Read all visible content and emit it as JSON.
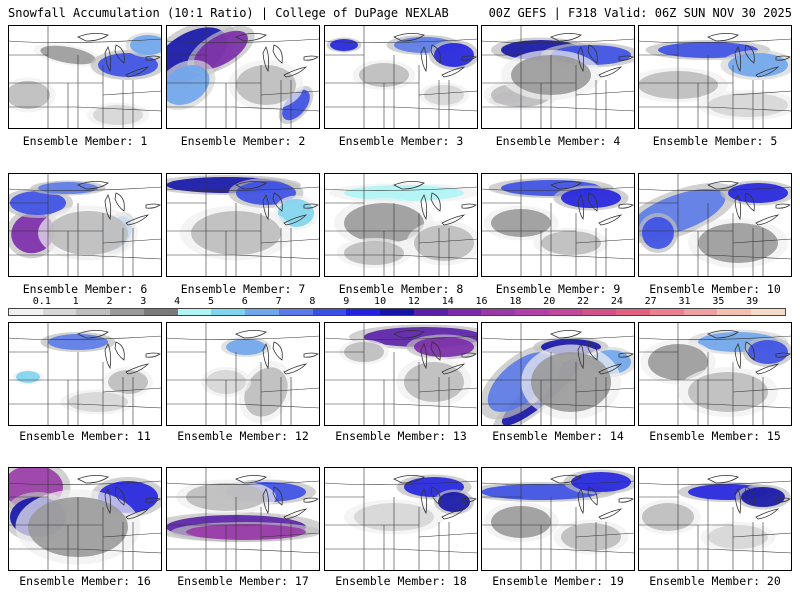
{
  "header": {
    "title_left": "Snowfall Accumulation (10:1 Ratio) | College of DuPage NEXLAB",
    "title_right": "00Z GEFS | F318 Valid: 06Z SUN NOV 30 2025"
  },
  "panels": [
    {
      "label": "Ensemble Member: 1"
    },
    {
      "label": "Ensemble Member: 2"
    },
    {
      "label": "Ensemble Member: 3"
    },
    {
      "label": "Ensemble Member: 4"
    },
    {
      "label": "Ensemble Member: 5"
    },
    {
      "label": "Ensemble Member: 6"
    },
    {
      "label": "Ensemble Member: 7"
    },
    {
      "label": "Ensemble Member: 8"
    },
    {
      "label": "Ensemble Member: 9"
    },
    {
      "label": "Ensemble Member: 10"
    },
    {
      "label": "Ensemble Member: 11"
    },
    {
      "label": "Ensemble Member: 12"
    },
    {
      "label": "Ensemble Member: 13"
    },
    {
      "label": "Ensemble Member: 14"
    },
    {
      "label": "Ensemble Member: 15"
    },
    {
      "label": "Ensemble Member: 16"
    },
    {
      "label": "Ensemble Member: 17"
    },
    {
      "label": "Ensemble Member: 18"
    },
    {
      "label": "Ensemble Member: 19"
    },
    {
      "label": "Ensemble Member: 20"
    }
  ],
  "legend": {
    "labels": [
      "0.1",
      "1",
      "2",
      "3",
      "4",
      "5",
      "6",
      "7",
      "8",
      "9",
      "10",
      "12",
      "14",
      "16",
      "18",
      "20",
      "22",
      "24",
      "27",
      "31",
      "35",
      "39"
    ],
    "colors": [
      "#f0f0f0",
      "#d6d6d6",
      "#bdbdbd",
      "#9a9a9a",
      "#7a7a7a",
      "#aff5f5",
      "#7fd4f0",
      "#6fa6ec",
      "#5b7ae8",
      "#3b4fe6",
      "#2222e0",
      "#1414a8",
      "#5a1fa8",
      "#7a2aa8",
      "#9a3aa8",
      "#b040a8",
      "#c04898",
      "#d05088",
      "#e06080",
      "#e88090",
      "#eea0a0",
      "#f2c0b0",
      "#f6dcc8"
    ]
  }
}
